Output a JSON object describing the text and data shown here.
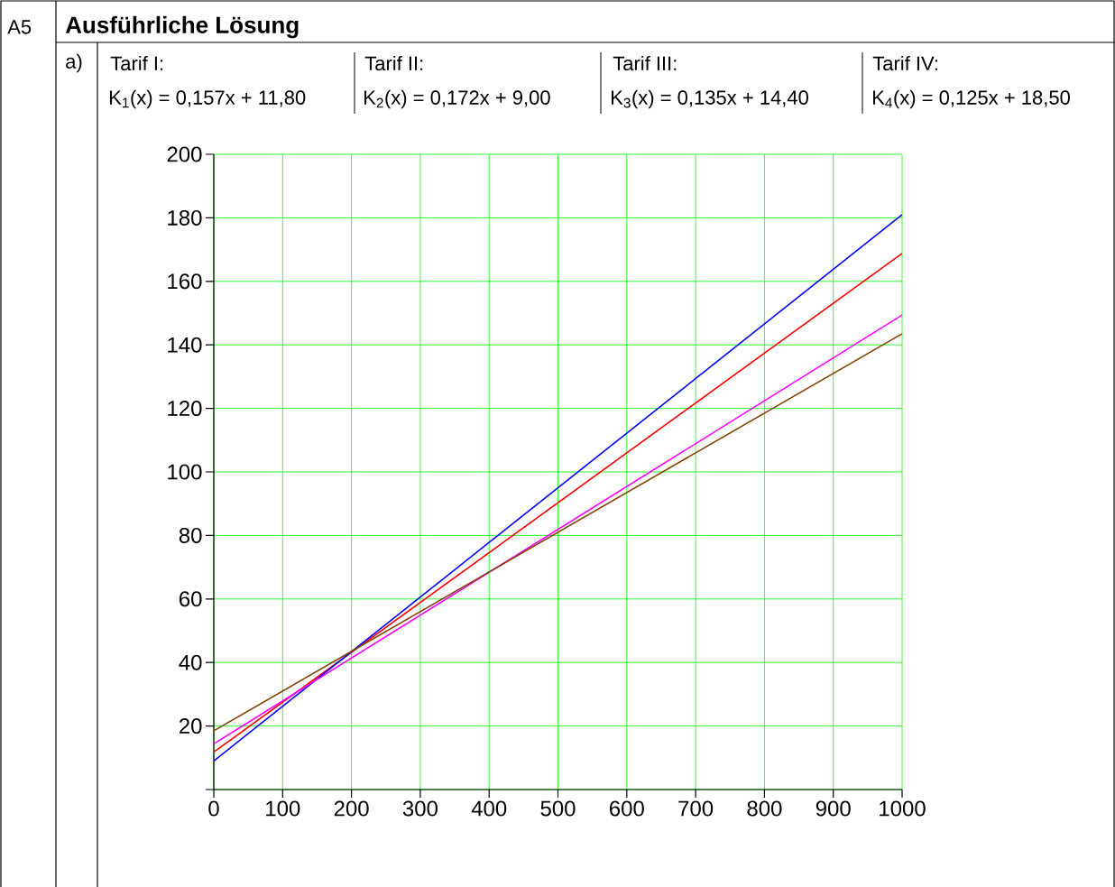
{
  "chart_data": {
    "type": "line",
    "title": "Ausführliche Lösung",
    "annotations": [
      "A5",
      "a)",
      "Tarif I:",
      "Tarif II:",
      "Tarif III:",
      "Tarif IV:",
      "K$_{1}$(x) = 0,157x + 11,80",
      "K$_{2}$(x) = 0,172x + 9,00",
      "K$_{3}$(x) = 0,135x + 14,40",
      "K$_{4}$(x) = 0,125x + 18,50"
    ],
    "x": [
      0,
      1000
    ],
    "series": [
      {
        "color": "#ff0000",
        "values": [
          11.8,
          168.8
        ]
      },
      {
        "color": "#0000ff",
        "values": [
          9,
          181
        ]
      },
      {
        "color": "#ff00ff",
        "values": [
          14.4,
          149.4
        ]
      },
      {
        "color": "#804000",
        "values": [
          18.5,
          143.5
        ]
      }
    ],
    "xlim": [
      0,
      1000
    ],
    "ylim": [
      0,
      200
    ],
    "xticks": [
      0,
      100,
      200,
      300,
      400,
      500,
      600,
      700,
      800,
      900,
      1000
    ],
    "yticks": [
      {
        "value": 0,
        "label": null
      },
      20,
      40,
      60,
      80,
      100,
      120,
      140,
      160,
      180,
      200
    ],
    "grid": true,
    "marker": "none",
    "line_style": "solid"
  }
}
